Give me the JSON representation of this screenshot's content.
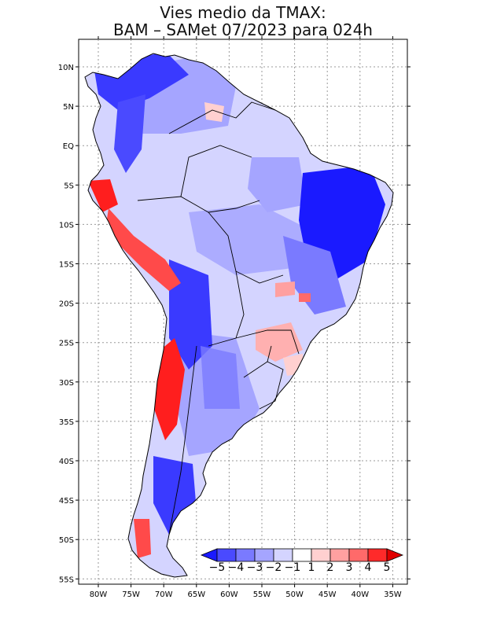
{
  "title": {
    "line1": "Vies medio da TMAX:",
    "line2": "BAM – SAMet 07/2023  para 024h"
  },
  "axes": {
    "lat_labels": [
      "10N",
      "5N",
      "EQ",
      "5S",
      "10S",
      "15S",
      "20S",
      "25S",
      "30S",
      "35S",
      "40S",
      "45S",
      "50S",
      "55S"
    ],
    "lon_labels": [
      "80W",
      "75W",
      "70W",
      "65W",
      "60W",
      "55W",
      "50W",
      "45W",
      "40W",
      "35W"
    ]
  },
  "colorbar": {
    "labels": [
      "−5",
      "−4",
      "−3",
      "−2",
      "−1",
      "1",
      "2",
      "3",
      "4",
      "5"
    ],
    "colors": [
      "#1a1aff",
      "#4a4aff",
      "#7a7aff",
      "#a5a5ff",
      "#d4d4ff",
      "#ffffff",
      "#ffd0d0",
      "#ffa0a0",
      "#ff6a6a",
      "#ff2a2a",
      "#e00000"
    ]
  },
  "map_colors": {
    "land_base": "#d4d4ff",
    "light_blue": "#a5a5ff",
    "mid_blue": "#7a7aff",
    "strong_blue": "#3a3aff",
    "light_red": "#ffa0a0",
    "strong_red": "#ff1e1e"
  }
}
